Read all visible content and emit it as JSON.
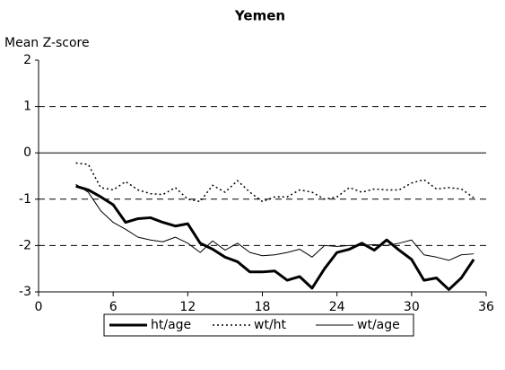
{
  "chart_data": {
    "type": "line",
    "title": "Yemen",
    "y_label": "Mean Z-score",
    "x": [
      3,
      4,
      5,
      6,
      7,
      8,
      9,
      10,
      11,
      12,
      13,
      14,
      15,
      16,
      17,
      18,
      19,
      20,
      21,
      22,
      23,
      24,
      25,
      26,
      27,
      28,
      29,
      30,
      31,
      32,
      33,
      34,
      35
    ],
    "series": [
      {
        "name": "ht/age",
        "color": "#000000",
        "line_style": "solid",
        "line_width": 3,
        "values": [
          -0.72,
          -0.8,
          -0.95,
          -1.12,
          -1.5,
          -1.42,
          -1.4,
          -1.5,
          -1.58,
          -1.53,
          -1.95,
          -2.08,
          -2.25,
          -2.35,
          -2.57,
          -2.57,
          -2.55,
          -2.75,
          -2.67,
          -2.92,
          -2.5,
          -2.15,
          -2.08,
          -1.95,
          -2.1,
          -1.88,
          -2.1,
          -2.3,
          -2.75,
          -2.7,
          -2.95,
          -2.7,
          -2.3
        ]
      },
      {
        "name": "wt/ht",
        "color": "#000000",
        "line_style": "dotted",
        "line_width": 1.5,
        "values": [
          -0.22,
          -0.25,
          -0.75,
          -0.8,
          -0.62,
          -0.8,
          -0.88,
          -0.9,
          -0.75,
          -1.0,
          -1.05,
          -0.7,
          -0.85,
          -0.6,
          -0.85,
          -1.05,
          -0.95,
          -0.95,
          -0.8,
          -0.85,
          -1.0,
          -0.95,
          -0.75,
          -0.85,
          -0.78,
          -0.8,
          -0.8,
          -0.65,
          -0.58,
          -0.78,
          -0.75,
          -0.78,
          -0.97
        ]
      },
      {
        "name": "wt/age",
        "color": "#000000",
        "line_style": "solid",
        "line_width": 1,
        "values": [
          -0.68,
          -0.85,
          -1.25,
          -1.5,
          -1.65,
          -1.82,
          -1.88,
          -1.92,
          -1.82,
          -1.95,
          -2.15,
          -1.9,
          -2.1,
          -1.95,
          -2.15,
          -2.22,
          -2.2,
          -2.15,
          -2.08,
          -2.25,
          -2.0,
          -2.02,
          -2.0,
          -2.0,
          -1.98,
          -2.0,
          -1.95,
          -1.88,
          -2.2,
          -2.25,
          -2.32,
          -2.2,
          -2.18
        ]
      }
    ],
    "xlim": [
      0,
      36
    ],
    "xticks": [
      0,
      6,
      12,
      18,
      24,
      30,
      36
    ],
    "ylim": [
      -3,
      2
    ],
    "yticks": [
      -3,
      -2,
      -1,
      0,
      1,
      2
    ],
    "grid": true,
    "legend": "bottom"
  }
}
